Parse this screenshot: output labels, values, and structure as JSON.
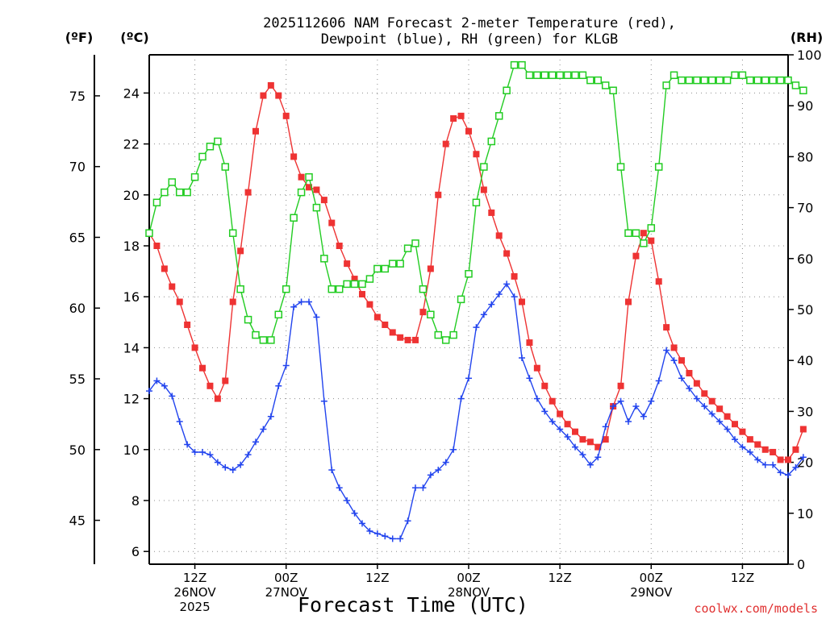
{
  "chart_data": {
    "type": "line",
    "title_line1": "2025112606 NAM Forecast 2-meter Temperature (red),",
    "title_line2": "Dewpoint (blue), RH (green) for KLGB",
    "units": {
      "fahrenheit": "(ºF)",
      "celsius": "(ºC)",
      "rh": "(RH)"
    },
    "xlabel": "Forecast Time (UTC)",
    "credit": "coolwx.com/models",
    "x_hour_range": [
      0,
      84
    ],
    "x_ticks": [
      {
        "hour": 6,
        "line1": "12Z",
        "line2": "26NOV",
        "line3": "2025"
      },
      {
        "hour": 18,
        "line1": "00Z",
        "line2": "27NOV",
        "line3": ""
      },
      {
        "hour": 30,
        "line1": "12Z",
        "line2": "",
        "line3": ""
      },
      {
        "hour": 42,
        "line1": "00Z",
        "line2": "28NOV",
        "line3": ""
      },
      {
        "hour": 54,
        "line1": "12Z",
        "line2": "",
        "line3": ""
      },
      {
        "hour": 66,
        "line1": "00Z",
        "line2": "29NOV",
        "line3": ""
      },
      {
        "hour": 78,
        "line1": "12Z",
        "line2": "",
        "line3": ""
      }
    ],
    "y_celsius_range": [
      5.5,
      25.5
    ],
    "y_celsius_ticks": [
      "6",
      "8",
      "10",
      "12",
      "14",
      "16",
      "18",
      "20",
      "22",
      "24"
    ],
    "y_fahrenheit_ticks": [
      "45",
      "50",
      "55",
      "60",
      "65",
      "70",
      "75"
    ],
    "y_rh_range": [
      0,
      100
    ],
    "y_rh_ticks": [
      "0",
      "10",
      "20",
      "30",
      "40",
      "50",
      "60",
      "70",
      "80",
      "90",
      "100"
    ],
    "series": [
      {
        "name": "2-meter Temperature",
        "unit": "C",
        "color": "#ee3333",
        "marker": "filled-square",
        "values": [
          18.5,
          18.0,
          17.1,
          16.4,
          15.8,
          14.9,
          14.0,
          13.2,
          12.5,
          12.0,
          12.7,
          15.8,
          17.8,
          20.1,
          22.5,
          23.9,
          24.3,
          23.9,
          23.1,
          21.5,
          20.7,
          20.3,
          20.2,
          19.8,
          18.9,
          18.0,
          17.3,
          16.7,
          16.1,
          15.7,
          15.2,
          14.9,
          14.6,
          14.4,
          14.3,
          14.3,
          15.4,
          17.1,
          20.0,
          22.0,
          23.0,
          23.1,
          22.5,
          21.6,
          20.2,
          19.3,
          18.4,
          17.7,
          16.8,
          15.8,
          14.2,
          13.2,
          12.5,
          11.9,
          11.4,
          11.0,
          10.7,
          10.4,
          10.3,
          10.1,
          10.4,
          11.7,
          12.5,
          15.8,
          17.6,
          18.5,
          18.2,
          16.6,
          14.8,
          14.0,
          13.5,
          13.0,
          12.6,
          12.2,
          11.9,
          11.6,
          11.3,
          11.0,
          10.7,
          10.4,
          10.2,
          10.0,
          9.9,
          9.6,
          9.6,
          10.0,
          10.8
        ]
      },
      {
        "name": "Dewpoint",
        "unit": "C",
        "color": "#2244ee",
        "marker": "plus",
        "values": [
          12.3,
          12.7,
          12.5,
          12.1,
          11.1,
          10.2,
          9.9,
          9.9,
          9.8,
          9.5,
          9.3,
          9.2,
          9.4,
          9.8,
          10.3,
          10.8,
          11.3,
          12.5,
          13.3,
          15.6,
          15.8,
          15.8,
          15.2,
          11.9,
          9.2,
          8.5,
          8.0,
          7.5,
          7.1,
          6.8,
          6.7,
          6.6,
          6.5,
          6.5,
          7.2,
          8.5,
          8.5,
          9.0,
          9.2,
          9.5,
          10.0,
          12.0,
          12.8,
          14.8,
          15.3,
          15.7,
          16.1,
          16.5,
          16.0,
          13.6,
          12.8,
          12.0,
          11.5,
          11.1,
          10.8,
          10.5,
          10.1,
          9.8,
          9.4,
          9.7,
          10.9,
          11.7,
          11.9,
          11.1,
          11.7,
          11.3,
          11.9,
          12.7,
          13.9,
          13.5,
          12.8,
          12.4,
          12.0,
          11.7,
          11.4,
          11.1,
          10.8,
          10.4,
          10.1,
          9.9,
          9.6,
          9.4,
          9.4,
          9.1,
          9.0,
          9.3,
          9.7
        ]
      },
      {
        "name": "RH",
        "unit": "%",
        "color": "#22cc22",
        "marker": "open-square",
        "values": [
          65,
          71,
          73,
          75,
          73,
          73,
          76,
          80,
          82,
          83,
          78,
          65,
          54,
          48,
          45,
          44,
          44,
          49,
          54,
          68,
          73,
          76,
          70,
          60,
          54,
          54,
          55,
          55,
          55,
          56,
          58,
          58,
          59,
          59,
          62,
          63,
          54,
          49,
          45,
          44,
          45,
          52,
          57,
          71,
          78,
          83,
          88,
          93,
          98,
          98,
          96,
          96,
          96,
          96,
          96,
          96,
          96,
          96,
          95,
          95,
          94,
          93,
          78,
          65,
          65,
          63,
          66,
          78,
          94,
          96,
          95,
          95,
          95,
          95,
          95,
          95,
          95,
          96,
          96,
          95,
          95,
          95,
          95,
          95,
          95,
          94,
          93
        ]
      }
    ]
  }
}
